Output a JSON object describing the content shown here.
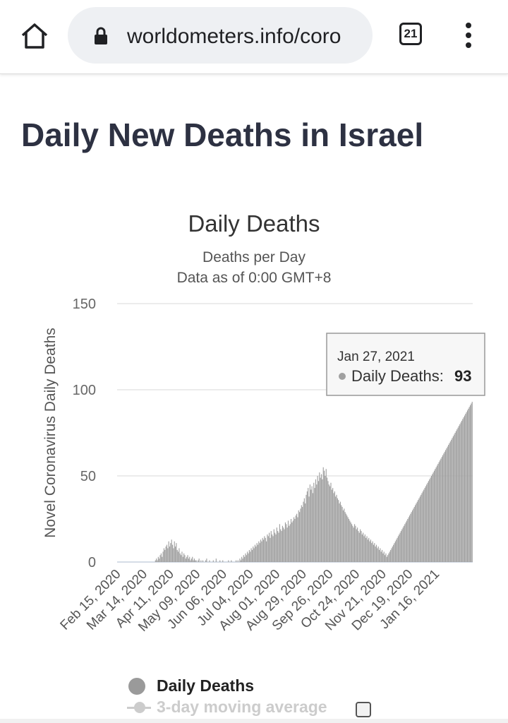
{
  "browser": {
    "url": "worldometers.info/coro",
    "tab_count": "21"
  },
  "page": {
    "title": "Daily New Deaths in Israel"
  },
  "chart_data": {
    "type": "bar",
    "title": "Daily Deaths",
    "subtitle_lines": [
      "Deaths per Day",
      "Data as of 0:00 GMT+8"
    ],
    "ylabel": "Novel Coronavirus Daily Deaths",
    "ylim": [
      0,
      150
    ],
    "yticks": [
      0,
      50,
      100,
      150
    ],
    "x_tick_labels": [
      "Feb 15, 2020",
      "Mar 14, 2020",
      "Apr 11, 2020",
      "May 09, 2020",
      "Jun 06, 2020",
      "Jul 04, 2020",
      "Aug 01, 2020",
      "Aug 29, 2020",
      "Sep 26, 2020",
      "Oct 24, 2020",
      "Nov 21, 2020",
      "Dec 19, 2020",
      "Jan 16, 2021"
    ],
    "x_start": "Feb 15, 2020",
    "x_end": "Jan 28, 2021",
    "series": [
      {
        "name": "Daily Deaths",
        "color": "#a0a0a0",
        "values": [
          0,
          0,
          0,
          0,
          0,
          0,
          0,
          0,
          0,
          0,
          0,
          0,
          0,
          0,
          0,
          0,
          0,
          0,
          0,
          0,
          0,
          0,
          0,
          0,
          0,
          0,
          0,
          0,
          0,
          0,
          0,
          0,
          0,
          0,
          0,
          0,
          0,
          0,
          0,
          0,
          1,
          2,
          1,
          3,
          2,
          4,
          5,
          3,
          6,
          8,
          7,
          9,
          10,
          8,
          12,
          9,
          11,
          13,
          10,
          8,
          12,
          9,
          11,
          7,
          6,
          8,
          5,
          4,
          6,
          3,
          5,
          4,
          2,
          3,
          4,
          2,
          3,
          1,
          2,
          3,
          1,
          2,
          1,
          1,
          0,
          1,
          2,
          0,
          1,
          0,
          1,
          0,
          0,
          1,
          2,
          0,
          0,
          1,
          0,
          0,
          0,
          1,
          0,
          0,
          2,
          0,
          0,
          0,
          1,
          0,
          0,
          1,
          0,
          0,
          0,
          0,
          0,
          1,
          0,
          0,
          1,
          0,
          0,
          0,
          0,
          1,
          0,
          1,
          0,
          2,
          1,
          3,
          2,
          4,
          3,
          5,
          4,
          6,
          5,
          7,
          6,
          8,
          7,
          9,
          8,
          10,
          9,
          11,
          10,
          12,
          11,
          13,
          12,
          14,
          13,
          15,
          14,
          12,
          16,
          15,
          17,
          14,
          18,
          16,
          15,
          19,
          17,
          16,
          20,
          18,
          17,
          22,
          19,
          18,
          21,
          20,
          19,
          23,
          22,
          20,
          24,
          21,
          22,
          25,
          23,
          24,
          26,
          25,
          27,
          28,
          26,
          30,
          29,
          31,
          33,
          32,
          35,
          37,
          34,
          39,
          41,
          43,
          38,
          45,
          42,
          44,
          40,
          46,
          43,
          48,
          45,
          50,
          47,
          52,
          49,
          51,
          48,
          55,
          53,
          50,
          54,
          49,
          47,
          45,
          44,
          46,
          42,
          43,
          40,
          41,
          38,
          39,
          37,
          36,
          34,
          35,
          33,
          32,
          30,
          31,
          29,
          28,
          27,
          26,
          25,
          24,
          23,
          22,
          21,
          20,
          22,
          21,
          19,
          20,
          18,
          17,
          19,
          18,
          16,
          17,
          15,
          16,
          14,
          15,
          13,
          14,
          12,
          13,
          11,
          12,
          10,
          11,
          9,
          10,
          8,
          9,
          7,
          8,
          6,
          7,
          5,
          6,
          4,
          5,
          3,
          4,
          5,
          6,
          7,
          8,
          9,
          10,
          11,
          12,
          13,
          14,
          15,
          16,
          17,
          18,
          19,
          20,
          21,
          22,
          23,
          24,
          25,
          26,
          27,
          28,
          29,
          30,
          31,
          32,
          33,
          34,
          35,
          36,
          37,
          38,
          39,
          40,
          41,
          42,
          43,
          44,
          45,
          46,
          47,
          48,
          49,
          50,
          51,
          52,
          53,
          54,
          55,
          56,
          57,
          58,
          59,
          60,
          61,
          62,
          63,
          64,
          65,
          66,
          67,
          68,
          69,
          70,
          71,
          72,
          73,
          74,
          75,
          76,
          77,
          78,
          79,
          80,
          81,
          82,
          83,
          84,
          85,
          86,
          87,
          88,
          89,
          90,
          91,
          92,
          93
        ]
      }
    ],
    "tooltip": {
      "date": "Jan 27, 2021",
      "label": "Daily Deaths:",
      "value": "93"
    },
    "legend": [
      "Daily Deaths",
      "3-day moving average"
    ]
  }
}
